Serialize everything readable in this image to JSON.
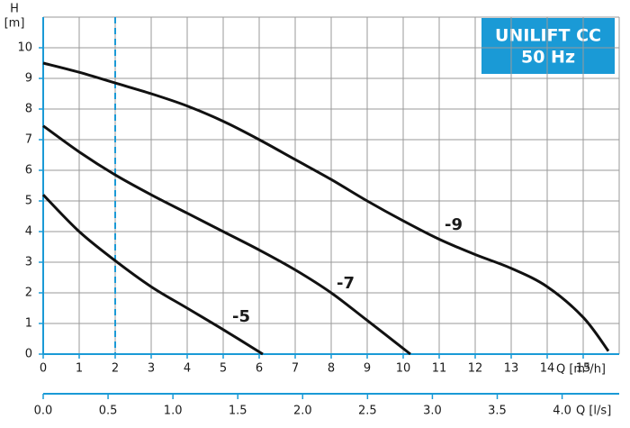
{
  "chart_data": {
    "type": "line",
    "badge": [
      "UNILIFT CC",
      "50 Hz"
    ],
    "y_label": [
      "H",
      "[m]"
    ],
    "x_label": "Q [m³/h]",
    "x2_label": "Q [l/s]",
    "xlim": [
      0,
      16
    ],
    "ylim": [
      0,
      11
    ],
    "xticks": [
      0,
      1,
      2,
      3,
      4,
      5,
      6,
      7,
      8,
      9,
      10,
      11,
      12,
      13,
      14,
      15
    ],
    "yticks": [
      0,
      1,
      2,
      3,
      4,
      5,
      6,
      7,
      8,
      9,
      10
    ],
    "x2lim": [
      0,
      4.44
    ],
    "x2ticks": [
      {
        "value": 0,
        "label": "0.0"
      },
      {
        "value": 0.5,
        "label": "0.5"
      },
      {
        "value": 1,
        "label": "1.0"
      },
      {
        "value": 1.5,
        "label": "1.5"
      },
      {
        "value": 2,
        "label": "2.0"
      },
      {
        "value": 2.5,
        "label": "2.5"
      },
      {
        "value": 3,
        "label": "3.0"
      },
      {
        "value": 3.5,
        "label": "3.5"
      },
      {
        "value": 4,
        "label": "4.0"
      }
    ],
    "grid": true,
    "reference_x": 2,
    "series": [
      {
        "name": "-5",
        "color": "#111111",
        "label_at": [
          5.5,
          1.2
        ],
        "x": [
          0,
          1,
          2,
          3,
          4,
          5,
          6.1
        ],
        "values": [
          5.2,
          4.0,
          3.05,
          2.2,
          1.5,
          0.8,
          0
        ]
      },
      {
        "name": "-7",
        "color": "#111111",
        "label_at": [
          8.4,
          2.3
        ],
        "x": [
          0,
          1,
          2,
          3,
          4,
          5,
          6,
          7,
          8,
          9,
          10.2
        ],
        "values": [
          7.45,
          6.6,
          5.85,
          5.2,
          4.6,
          4.0,
          3.4,
          2.75,
          2.0,
          1.1,
          0
        ]
      },
      {
        "name": "-9",
        "color": "#111111",
        "label_at": [
          11.4,
          4.2
        ],
        "x": [
          0,
          1,
          2,
          3,
          4,
          5,
          6,
          7,
          8,
          9,
          10,
          11,
          12,
          13,
          14,
          15,
          15.7
        ],
        "values": [
          9.5,
          9.2,
          8.85,
          8.5,
          8.1,
          7.6,
          7.0,
          6.35,
          5.7,
          5.0,
          4.35,
          3.75,
          3.25,
          2.8,
          2.2,
          1.2,
          0.1
        ]
      }
    ]
  }
}
